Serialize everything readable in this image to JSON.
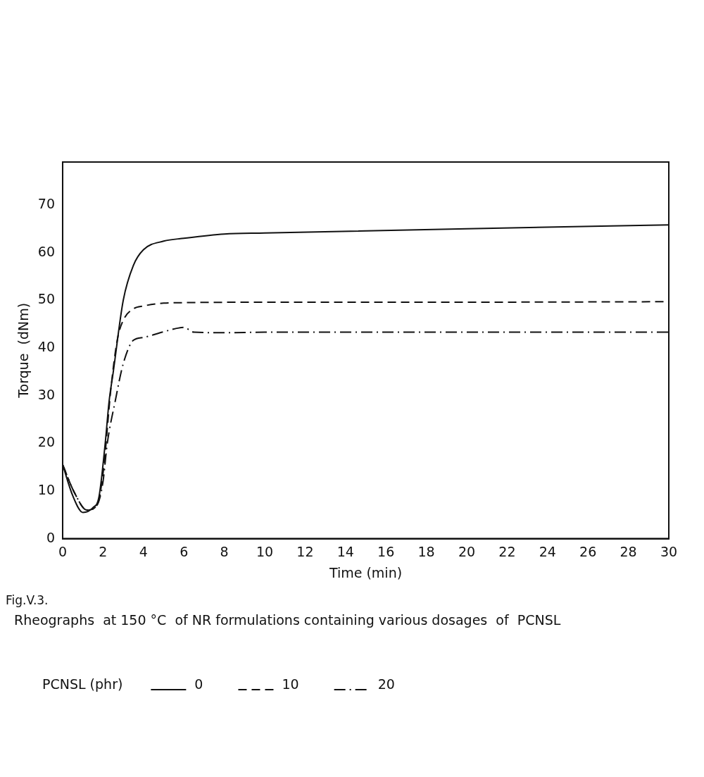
{
  "chart_data": {
    "type": "line",
    "title": "Rheographs  at 150 °C  of NR formulations containing various dosages  of  PCNSL",
    "xlabel": "Time (min)",
    "ylabel": "Torque  (dNm)",
    "legend_title": "PCNSL (phr)",
    "legend": "bottom",
    "annotations": [
      "Fig.V.3."
    ],
    "xlim": [
      0,
      30
    ],
    "xticks": [
      0,
      2,
      4,
      6,
      8,
      10,
      12,
      14,
      16,
      18,
      20,
      22,
      24,
      26,
      28,
      30
    ],
    "ylim": [
      0,
      79
    ],
    "yticks": [
      0,
      10,
      20,
      30,
      40,
      50,
      60,
      70
    ],
    "marker": "none",
    "series": [
      {
        "name": "0",
        "color": "#111111",
        "line_style": "solid",
        "x": [
          0,
          0.5,
          1,
          1.5,
          1.8,
          2.1,
          2.3,
          2.5,
          3,
          3.5,
          4,
          5,
          6,
          8,
          10,
          20,
          30
        ],
        "values": [
          15.5,
          9,
          5.5,
          6.5,
          8.8,
          19.7,
          28.8,
          34.8,
          50,
          57.3,
          60.6,
          62.4,
          63,
          63.9,
          64.1,
          65,
          65.8
        ]
      },
      {
        "name": "10",
        "color": "#111111",
        "line_style": "dashed",
        "x": [
          0,
          0.6,
          1.2,
          1.7,
          2,
          2.4,
          2.7,
          3,
          3.5,
          4,
          5,
          6,
          10,
          20,
          30
        ],
        "values": [
          15.5,
          9.5,
          6,
          7,
          13.7,
          31.9,
          41.6,
          45.8,
          48.2,
          48.8,
          49.4,
          49.5,
          49.6,
          49.6,
          49.7
        ]
      },
      {
        "name": "20",
        "color": "#111111",
        "line_style": "dashdot",
        "x": [
          0,
          0.6,
          1.2,
          1.7,
          2,
          2.2,
          2.6,
          3,
          3.5,
          4,
          5,
          6,
          6.5,
          8,
          10,
          20,
          30
        ],
        "values": [
          15.5,
          9.5,
          6,
          7,
          12,
          19.7,
          28.8,
          36.7,
          41.6,
          42.2,
          43.4,
          44.3,
          43.3,
          43.2,
          43.3,
          43.3,
          43.3
        ]
      }
    ]
  }
}
